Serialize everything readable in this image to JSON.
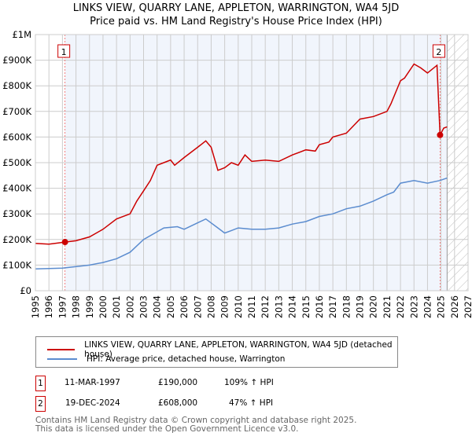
{
  "title": "LINKS VIEW, QUARRY LANE, APPLETON, WARRINGTON, WA4 5JD",
  "subtitle": "Price paid vs. HM Land Registry's House Price Index (HPI)",
  "chart_data": {
    "type": "line",
    "title": "LINKS VIEW, QUARRY LANE, APPLETON, WARRINGTON, WA4 5JD",
    "xlim": [
      1995,
      2027
    ],
    "ylim": [
      0,
      1000000
    ],
    "yticks": [
      {
        "v": 0,
        "l": "£0"
      },
      {
        "v": 100000,
        "l": "£100K"
      },
      {
        "v": 200000,
        "l": "£200K"
      },
      {
        "v": 300000,
        "l": "£300K"
      },
      {
        "v": 400000,
        "l": "£400K"
      },
      {
        "v": 500000,
        "l": "£500K"
      },
      {
        "v": 600000,
        "l": "£600K"
      },
      {
        "v": 700000,
        "l": "£700K"
      },
      {
        "v": 800000,
        "l": "£800K"
      },
      {
        "v": 900000,
        "l": "£900K"
      },
      {
        "v": 1000000,
        "l": "£1M"
      }
    ],
    "xticks": [
      "1995",
      "1996",
      "1997",
      "1998",
      "1999",
      "2000",
      "2001",
      "2002",
      "2003",
      "2004",
      "2005",
      "2006",
      "2007",
      "2008",
      "2009",
      "2010",
      "2011",
      "2012",
      "2013",
      "2014",
      "2015",
      "2016",
      "2017",
      "2018",
      "2019",
      "2020",
      "2021",
      "2022",
      "2023",
      "2024",
      "2025",
      "2026",
      "2027"
    ],
    "forecast_start": 2025.45,
    "series": [
      {
        "name": "LINKS VIEW, QUARRY LANE, APPLETON, WARRINGTON, WA4 5JD (detached house)",
        "color": "#cc0000",
        "x": [
          1995,
          1996,
          1997.19,
          1998,
          1999,
          2000,
          2001,
          2002,
          2002.5,
          2003,
          2003.5,
          2004,
          2004.5,
          2005,
          2005.3,
          2006,
          2007,
          2007.6,
          2008,
          2008.5,
          2009,
          2009.5,
          2010,
          2010.5,
          2011,
          2012,
          2013,
          2014,
          2015,
          2015.7,
          2016,
          2016.7,
          2017,
          2018,
          2019,
          2020,
          2021,
          2021.3,
          2022,
          2022.3,
          2023,
          2023.5,
          2024,
          2024.7,
          2024.93,
          2025.2,
          2025.45
        ],
        "y": [
          185000,
          182000,
          190000,
          195000,
          210000,
          240000,
          280000,
          300000,
          350000,
          390000,
          430000,
          490000,
          500000,
          510000,
          490000,
          520000,
          560000,
          585000,
          560000,
          470000,
          480000,
          500000,
          490000,
          530000,
          505000,
          510000,
          505000,
          530000,
          550000,
          545000,
          570000,
          580000,
          600000,
          615000,
          670000,
          680000,
          700000,
          730000,
          820000,
          830000,
          885000,
          870000,
          850000,
          880000,
          608000,
          635000,
          640000
        ]
      },
      {
        "name": "HPI: Average price, detached house, Warrington",
        "color": "#5b8ccf",
        "x": [
          1995,
          1997,
          1999,
          2000,
          2001,
          2002,
          2003,
          2004,
          2004.5,
          2005.5,
          2006,
          2007,
          2007.6,
          2008.5,
          2009,
          2009.5,
          2010,
          2011,
          2012,
          2013,
          2014,
          2015,
          2016,
          2017,
          2018,
          2019,
          2020,
          2021,
          2021.5,
          2022,
          2023,
          2024,
          2024.9,
          2025.45
        ],
        "y": [
          85000,
          88000,
          100000,
          110000,
          125000,
          150000,
          200000,
          230000,
          245000,
          250000,
          240000,
          265000,
          280000,
          245000,
          225000,
          235000,
          245000,
          240000,
          240000,
          245000,
          260000,
          270000,
          290000,
          300000,
          320000,
          330000,
          350000,
          375000,
          385000,
          420000,
          430000,
          420000,
          430000,
          440000
        ]
      }
    ],
    "annotations": [
      {
        "label": "1",
        "x": 1997.19,
        "y": 190000
      },
      {
        "label": "2",
        "x": 2024.93,
        "y": 608000
      }
    ]
  },
  "legend": [
    "LINKS VIEW, QUARRY LANE, APPLETON, WARRINGTON, WA4 5JD (detached house)",
    "HPI: Average price, detached house, Warrington"
  ],
  "sales": [
    {
      "num": "1",
      "date": "11-MAR-1997",
      "price": "£190,000",
      "hpi": "109% ↑ HPI"
    },
    {
      "num": "2",
      "date": "19-DEC-2024",
      "price": "£608,000",
      "hpi": "47% ↑ HPI"
    }
  ],
  "footer": [
    "Contains HM Land Registry data © Crown copyright and database right 2025.",
    "This data is licensed under the Open Government Licence v3.0."
  ]
}
